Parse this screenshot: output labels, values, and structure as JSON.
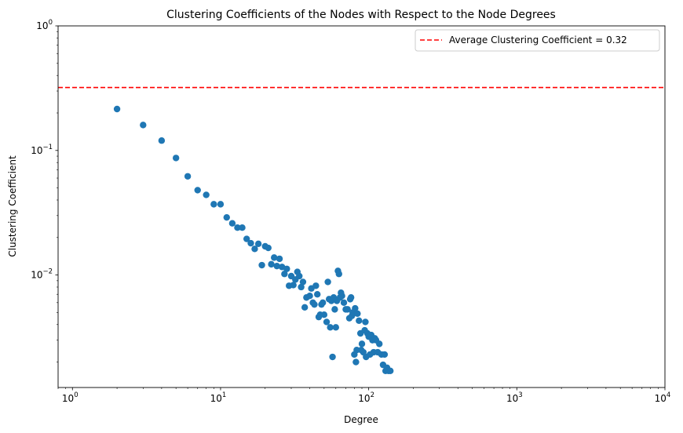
{
  "chart_data": {
    "type": "scatter",
    "title": "Clustering Coefficients of the Nodes with Respect to the Node Degrees",
    "xlabel": "Degree",
    "ylabel": "Clustering Coefficient",
    "xscale": "log",
    "yscale": "log",
    "xlim": [
      0.8,
      10000
    ],
    "ylim": [
      0.00125,
      1
    ],
    "x_ticks": [
      {
        "value": 1,
        "base": "10",
        "exp": "0"
      },
      {
        "value": 10,
        "base": "10",
        "exp": "1"
      },
      {
        "value": 100,
        "base": "10",
        "exp": "2"
      },
      {
        "value": 1000,
        "base": "10",
        "exp": "3"
      },
      {
        "value": 10000,
        "base": "10",
        "exp": "4"
      }
    ],
    "y_ticks": [
      {
        "value": 0.01,
        "base": "10",
        "exp": "−2"
      },
      {
        "value": 0.1,
        "base": "10",
        "exp": "−1"
      },
      {
        "value": 1,
        "base": "10",
        "exp": "0"
      }
    ],
    "legend": {
      "location": "top-right",
      "label": "Average Clustering Coefficient = 0.32"
    },
    "reference_line": {
      "y": 0.32,
      "color": "#ff0000",
      "style": "dashed"
    },
    "point_color": "#1f77b4",
    "points": [
      [
        2,
        0.215
      ],
      [
        3,
        0.16
      ],
      [
        4,
        0.12
      ],
      [
        5,
        0.087
      ],
      [
        6,
        0.062
      ],
      [
        7,
        0.048
      ],
      [
        8,
        0.044
      ],
      [
        9,
        0.037
      ],
      [
        10,
        0.037
      ],
      [
        11,
        0.029
      ],
      [
        12,
        0.026
      ],
      [
        13,
        0.024
      ],
      [
        14,
        0.024
      ],
      [
        15,
        0.0195
      ],
      [
        16,
        0.018
      ],
      [
        17,
        0.0162
      ],
      [
        18,
        0.0178
      ],
      [
        19,
        0.012
      ],
      [
        20,
        0.017
      ],
      [
        21,
        0.0165
      ],
      [
        22,
        0.0122
      ],
      [
        23,
        0.0138
      ],
      [
        24,
        0.0118
      ],
      [
        25,
        0.0135
      ],
      [
        26,
        0.0116
      ],
      [
        27,
        0.0102
      ],
      [
        28,
        0.0112
      ],
      [
        29,
        0.0082
      ],
      [
        30,
        0.0098
      ],
      [
        31,
        0.0083
      ],
      [
        32,
        0.0092
      ],
      [
        33,
        0.0106
      ],
      [
        34,
        0.0098
      ],
      [
        35,
        0.008
      ],
      [
        36,
        0.0088
      ],
      [
        37,
        0.0055
      ],
      [
        38,
        0.0066
      ],
      [
        40,
        0.0068
      ],
      [
        41,
        0.0078
      ],
      [
        42,
        0.006
      ],
      [
        43,
        0.0058
      ],
      [
        44,
        0.0082
      ],
      [
        45,
        0.007
      ],
      [
        46,
        0.0046
      ],
      [
        47,
        0.0048
      ],
      [
        48,
        0.0058
      ],
      [
        49,
        0.006
      ],
      [
        50,
        0.0048
      ],
      [
        52,
        0.0042
      ],
      [
        53,
        0.0088
      ],
      [
        54,
        0.0064
      ],
      [
        55,
        0.0038
      ],
      [
        56,
        0.0062
      ],
      [
        57,
        0.0022
      ],
      [
        58,
        0.0066
      ],
      [
        59,
        0.0053
      ],
      [
        60,
        0.0038
      ],
      [
        61,
        0.0062
      ],
      [
        62,
        0.0108
      ],
      [
        63,
        0.0102
      ],
      [
        64,
        0.0066
      ],
      [
        65,
        0.0072
      ],
      [
        66,
        0.0068
      ],
      [
        68,
        0.006
      ],
      [
        70,
        0.0053
      ],
      [
        72,
        0.0053
      ],
      [
        74,
        0.0045
      ],
      [
        75,
        0.0064
      ],
      [
        76,
        0.0066
      ],
      [
        77,
        0.0047
      ],
      [
        78,
        0.005
      ],
      [
        80,
        0.0023
      ],
      [
        81,
        0.0054
      ],
      [
        82,
        0.002
      ],
      [
        83,
        0.0025
      ],
      [
        84,
        0.0049
      ],
      [
        86,
        0.0043
      ],
      [
        88,
        0.0034
      ],
      [
        89,
        0.0025
      ],
      [
        90,
        0.0028
      ],
      [
        92,
        0.0024
      ],
      [
        94,
        0.0036
      ],
      [
        95,
        0.0042
      ],
      [
        96,
        0.0022
      ],
      [
        98,
        0.0034
      ],
      [
        100,
        0.0032
      ],
      [
        102,
        0.0023
      ],
      [
        104,
        0.0033
      ],
      [
        106,
        0.003
      ],
      [
        108,
        0.0024
      ],
      [
        110,
        0.0031
      ],
      [
        112,
        0.003
      ],
      [
        115,
        0.0024
      ],
      [
        118,
        0.0028
      ],
      [
        122,
        0.0023
      ],
      [
        125,
        0.0019
      ],
      [
        128,
        0.0023
      ],
      [
        130,
        0.0017
      ],
      [
        133,
        0.0018
      ],
      [
        136,
        0.0017
      ],
      [
        140,
        0.0017
      ]
    ]
  }
}
